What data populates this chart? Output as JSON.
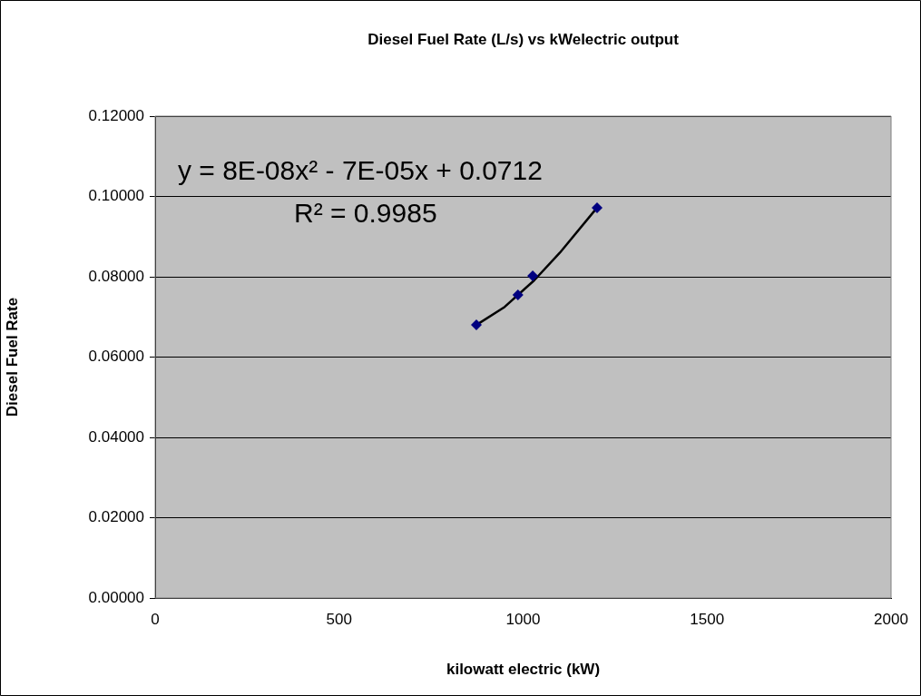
{
  "chart_data": {
    "type": "scatter",
    "title": "Diesel Fuel Rate (L/s) vs kWelectric output",
    "xlabel": "kilowatt electric (kW)",
    "ylabel": "Diesel Fuel Rate",
    "xlim": [
      0,
      2000
    ],
    "xticks": [
      0,
      500,
      1000,
      1500,
      2000
    ],
    "ylim": [
      0,
      0.12
    ],
    "yticks": [
      {
        "value": 0,
        "label": "0.00000"
      },
      {
        "value": 0.02,
        "label": "0.02000"
      },
      {
        "value": 0.04,
        "label": "0.04000"
      },
      {
        "value": 0.06,
        "label": "0.06000"
      },
      {
        "value": 0.08,
        "label": "0.08000"
      },
      {
        "value": 0.1,
        "label": "0.10000"
      },
      {
        "value": 0.12,
        "label": "0.12000"
      }
    ],
    "grid": "y",
    "marker": "diamond",
    "series": [
      {
        "color": "#000080",
        "x": [
          873,
          986,
          1026,
          1201
        ],
        "values": [
          0.068,
          0.0755,
          0.0802,
          0.0972
        ]
      },
      {
        "type": "line",
        "color": "#000000",
        "marker": "none",
        "x": [
          873,
          950,
          1030,
          1100,
          1201
        ],
        "values": [
          0.068,
          0.0725,
          0.0791,
          0.086,
          0.0972
        ]
      }
    ],
    "annotations": [
      "y = 8E-08x² - 7E-05x + 0.0712",
      "R² = 0.9985"
    ]
  }
}
